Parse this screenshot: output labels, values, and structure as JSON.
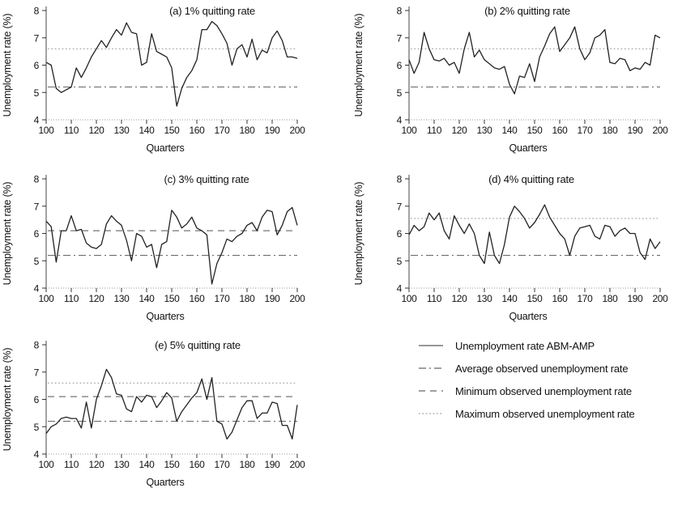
{
  "figure": {
    "background": "#ffffff",
    "colors": {
      "series": "#222222",
      "ref_line": "#666666",
      "ref_dotted": "#999999",
      "axis": "#444444",
      "baseline_dotted": "#999999",
      "text": "#111111",
      "legend_solid_sample": "#777777"
    }
  },
  "chart_data": [
    {
      "id": "a",
      "type": "line",
      "title": "(a) 1% quitting rate",
      "xlabel": "Quarters",
      "ylabel": "Unemployment rate  (%)",
      "xlim": [
        100,
        200
      ],
      "ylim": [
        4,
        8
      ],
      "x_ticks": [
        100,
        110,
        120,
        130,
        140,
        150,
        160,
        170,
        180,
        190,
        200
      ],
      "y_ticks": [
        4,
        5,
        6,
        7,
        8
      ],
      "series_name": "Unemployment rate ABM-AMP",
      "x_start": 100,
      "x_step": 2,
      "values": [
        6.1,
        6.0,
        5.15,
        5.0,
        5.1,
        5.2,
        5.9,
        5.55,
        5.9,
        6.3,
        6.6,
        6.9,
        6.65,
        7.0,
        7.3,
        7.1,
        7.55,
        7.2,
        7.15,
        6.0,
        6.1,
        7.15,
        6.5,
        6.4,
        6.3,
        5.9,
        4.5,
        5.15,
        5.55,
        5.8,
        6.2,
        7.3,
        7.3,
        7.6,
        7.45,
        7.15,
        6.8,
        6.0,
        6.6,
        6.75,
        6.3,
        6.95,
        6.2,
        6.55,
        6.45,
        7.0,
        7.25,
        6.9,
        6.3,
        6.3,
        6.25
      ],
      "ref_lines": [
        {
          "label": "Maximum observed unemployment rate",
          "style": "dotted",
          "value": 6.6
        },
        {
          "label": "Average observed unemployment rate",
          "style": "dashdot",
          "value": 5.2
        }
      ]
    },
    {
      "id": "b",
      "type": "line",
      "title": "(b) 2% quitting rate",
      "xlabel": "Quarters",
      "ylabel": "Unemployment rate  (%)",
      "xlim": [
        100,
        200
      ],
      "ylim": [
        4,
        8
      ],
      "x_ticks": [
        100,
        110,
        120,
        130,
        140,
        150,
        160,
        170,
        180,
        190,
        200
      ],
      "y_ticks": [
        4,
        5,
        6,
        7,
        8
      ],
      "series_name": "Unemployment rate ABM-AMP",
      "x_start": 100,
      "x_step": 2,
      "values": [
        6.2,
        5.7,
        6.1,
        7.2,
        6.6,
        6.2,
        6.15,
        6.25,
        6.0,
        6.1,
        5.7,
        6.6,
        7.2,
        6.3,
        6.55,
        6.2,
        6.05,
        5.9,
        5.85,
        5.95,
        5.3,
        4.95,
        5.6,
        5.55,
        6.05,
        5.4,
        6.3,
        6.7,
        7.15,
        7.4,
        6.5,
        6.75,
        7.0,
        7.4,
        6.6,
        6.2,
        6.45,
        7.0,
        7.1,
        7.3,
        6.1,
        6.05,
        6.25,
        6.2,
        5.8,
        5.9,
        5.85,
        6.1,
        6.0,
        7.1,
        7.0
      ],
      "ref_lines": [
        {
          "label": "Maximum observed unemployment rate",
          "style": "dotted",
          "value": 6.6
        },
        {
          "label": "Average observed unemployment rate",
          "style": "dashdot",
          "value": 5.2
        }
      ]
    },
    {
      "id": "c",
      "type": "line",
      "title": "(c) 3% quitting rate",
      "xlabel": "Quarters",
      "ylabel": "Unemployment rate  (%)",
      "xlim": [
        100,
        200
      ],
      "ylim": [
        4,
        8
      ],
      "x_ticks": [
        100,
        110,
        120,
        130,
        140,
        150,
        160,
        170,
        180,
        190,
        200
      ],
      "y_ticks": [
        4,
        5,
        6,
        7,
        8
      ],
      "series_name": "Unemployment rate ABM-AMP",
      "x_start": 100,
      "x_step": 2,
      "values": [
        6.45,
        6.25,
        4.95,
        6.1,
        6.1,
        6.65,
        6.1,
        6.15,
        5.65,
        5.5,
        5.45,
        5.6,
        6.35,
        6.65,
        6.45,
        6.3,
        5.75,
        5.0,
        6.0,
        5.9,
        5.5,
        5.6,
        4.75,
        5.6,
        5.7,
        6.85,
        6.6,
        6.2,
        6.35,
        6.6,
        6.2,
        6.1,
        5.95,
        4.15,
        4.9,
        5.3,
        5.8,
        5.7,
        5.9,
        6.0,
        6.3,
        6.4,
        6.1,
        6.6,
        6.85,
        6.8,
        5.95,
        6.3,
        6.8,
        6.95,
        6.3
      ],
      "ref_lines": [
        {
          "label": "Minimum observed unemployment rate",
          "style": "dashed",
          "value": 6.1
        },
        {
          "label": "Average observed unemployment rate",
          "style": "dashdot",
          "value": 5.2
        }
      ]
    },
    {
      "id": "d",
      "type": "line",
      "title": "(d) 4% quitting rate",
      "xlabel": "Quarters",
      "ylabel": "Unemployment rate  (%)",
      "xlim": [
        100,
        200
      ],
      "ylim": [
        4,
        8
      ],
      "x_ticks": [
        100,
        110,
        120,
        130,
        140,
        150,
        160,
        170,
        180,
        190,
        200
      ],
      "y_ticks": [
        4,
        5,
        6,
        7,
        8
      ],
      "series_name": "Unemployment rate ABM-AMP",
      "x_start": 100,
      "x_step": 2,
      "values": [
        5.95,
        6.3,
        6.1,
        6.25,
        6.75,
        6.5,
        6.75,
        6.1,
        5.8,
        6.65,
        6.3,
        6.0,
        6.35,
        6.0,
        5.2,
        4.9,
        6.05,
        5.2,
        4.9,
        5.6,
        6.6,
        7.0,
        6.8,
        6.55,
        6.2,
        6.4,
        6.7,
        7.05,
        6.6,
        6.3,
        6.0,
        5.8,
        5.2,
        5.9,
        6.2,
        6.25,
        6.3,
        5.9,
        5.8,
        6.3,
        6.25,
        5.9,
        6.1,
        6.2,
        6.0,
        6.0,
        5.3,
        5.05,
        5.8,
        5.45,
        5.7
      ],
      "ref_lines": [
        {
          "label": "Maximum observed unemployment rate",
          "style": "dotted",
          "value": 6.55
        },
        {
          "label": "Average observed unemployment rate",
          "style": "dashdot",
          "value": 5.2
        }
      ]
    },
    {
      "id": "e",
      "type": "line",
      "title": "(e) 5% quitting rate",
      "xlabel": "Quarters",
      "ylabel": "Unemployment rate  (%)",
      "xlim": [
        100,
        200
      ],
      "ylim": [
        4,
        8
      ],
      "x_ticks": [
        100,
        110,
        120,
        130,
        140,
        150,
        160,
        170,
        180,
        190,
        200
      ],
      "y_ticks": [
        4,
        5,
        6,
        7,
        8
      ],
      "series_name": "Unemployment rate ABM-AMP",
      "x_start": 100,
      "x_step": 2,
      "values": [
        4.75,
        5.0,
        5.1,
        5.3,
        5.35,
        5.3,
        5.3,
        4.95,
        5.9,
        4.95,
        6.0,
        6.5,
        7.1,
        6.8,
        6.2,
        6.15,
        5.65,
        5.55,
        6.1,
        5.9,
        6.15,
        6.1,
        5.7,
        5.95,
        6.25,
        6.05,
        5.2,
        5.55,
        5.8,
        6.05,
        6.25,
        6.75,
        6.0,
        6.8,
        5.2,
        5.1,
        4.55,
        4.8,
        5.25,
        5.7,
        5.95,
        5.95,
        5.3,
        5.5,
        5.5,
        5.9,
        5.85,
        5.05,
        5.05,
        4.55,
        5.8
      ],
      "ref_lines": [
        {
          "label": "Maximum observed unemployment rate",
          "style": "dotted",
          "value": 6.6
        },
        {
          "label": "Minimum observed unemployment rate",
          "style": "dashed",
          "value": 6.1
        },
        {
          "label": "Average observed unemployment rate",
          "style": "dashdot",
          "value": 5.2
        }
      ]
    }
  ],
  "legend": {
    "items": [
      {
        "style": "solid",
        "label": "Unemployment rate ABM-AMP"
      },
      {
        "style": "dashdot",
        "label": "Average observed unemployment rate"
      },
      {
        "style": "dashed",
        "label": "Minimum observed unemployment rate"
      },
      {
        "style": "dotted",
        "label": "Maximum observed unemployment rate"
      }
    ]
  }
}
